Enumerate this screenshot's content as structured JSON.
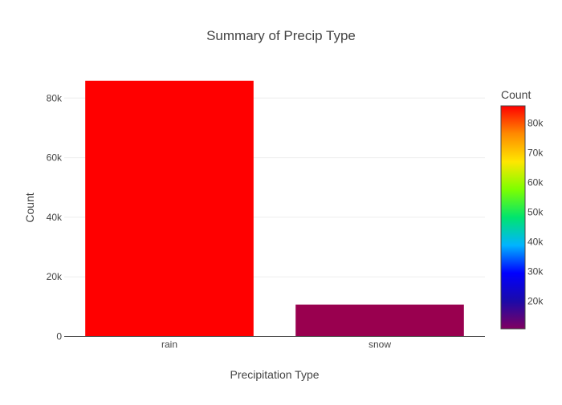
{
  "chart_data": {
    "type": "bar",
    "title": "Summary of Precip Type",
    "xlabel": "Precipitation Type",
    "ylabel": "Count",
    "categories": [
      "rain",
      "snow"
    ],
    "values": [
      85800,
      10700
    ],
    "ylim": [
      0,
      86000
    ],
    "yticks": [
      0,
      20000,
      40000,
      60000,
      80000
    ],
    "ytick_labels": [
      "0",
      "20k",
      "40k",
      "60k",
      "80k"
    ],
    "grid": true,
    "legend": "none",
    "colorbar": {
      "title": "Count",
      "range": [
        10700,
        85800
      ],
      "ticks": [
        20000,
        30000,
        40000,
        50000,
        60000,
        70000,
        80000
      ],
      "tick_labels": [
        "20k",
        "30k",
        "40k",
        "50k",
        "60k",
        "70k",
        "80k"
      ],
      "placement": "right",
      "colorscale": [
        "#800060",
        "#1b0aa9",
        "#0000ff",
        "#00b4ff",
        "#00e46e",
        "#7dff00",
        "#ffe600",
        "#ff8a00",
        "#ff0000"
      ]
    },
    "bar_colors": [
      "#ff0000",
      "#99004f"
    ]
  }
}
